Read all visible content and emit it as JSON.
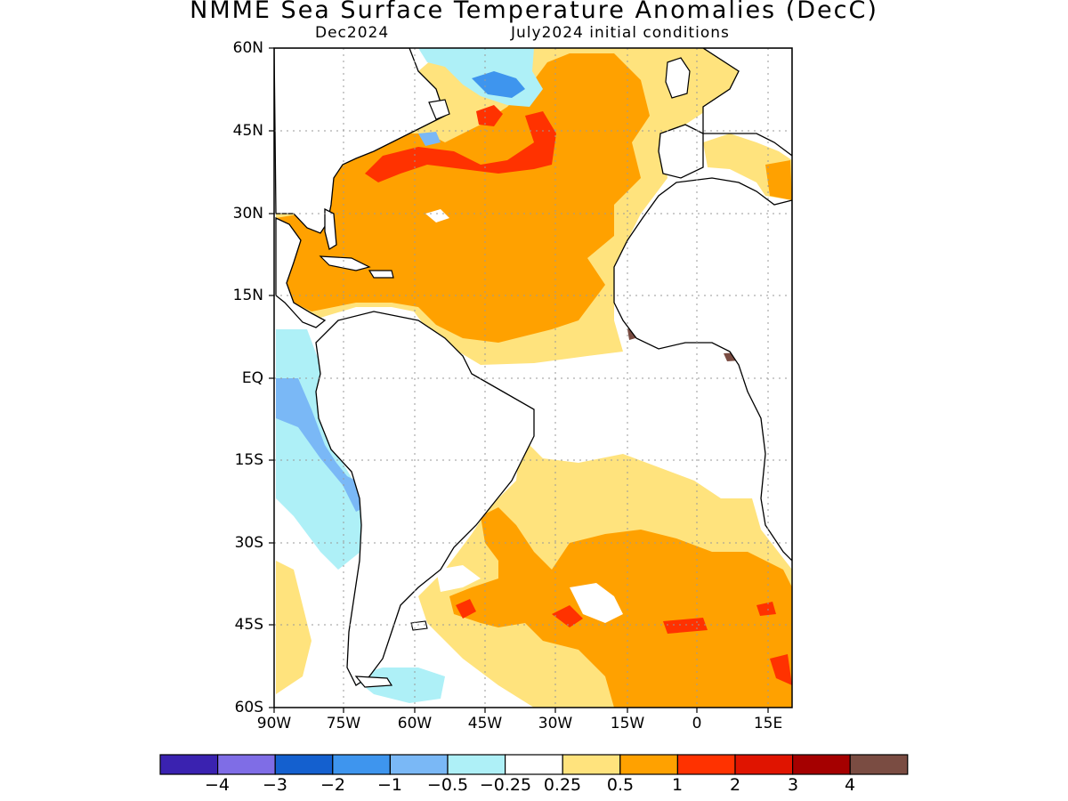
{
  "title": "NMME Sea Surface Temperature Anomalies (DecC)",
  "subtitle_left": "Dec2024",
  "subtitle_right": "July2024 initial conditions",
  "map": {
    "lon_range": [
      -90,
      20
    ],
    "lat_range": [
      -60,
      60
    ],
    "grid": "dotted",
    "lat_labels": [
      "60N",
      "45N",
      "30N",
      "15N",
      "EQ",
      "15S",
      "30S",
      "45S",
      "60S"
    ],
    "lon_labels": [
      "90W",
      "75W",
      "60W",
      "45W",
      "30W",
      "15W",
      "0",
      "15E"
    ]
  },
  "colorbar": {
    "colors": [
      "#3a22b0",
      "#7f6de6",
      "#1460cf",
      "#3e95ee",
      "#7ab8f6",
      "#aef0f7",
      "#ffffff",
      "#ffe37d",
      "#ffa100",
      "#ff3200",
      "#e01400",
      "#a50000",
      "#7a4c42"
    ],
    "labels": [
      "−4",
      "−3",
      "−2",
      "−1",
      "−0.5",
      "−0.25",
      "0.25",
      "0.5",
      "1",
      "2",
      "3",
      "4"
    ]
  },
  "colors": {
    "orange": "#ffa100",
    "yellow": "#ffe37d",
    "red": "#ff3200",
    "lightblue": "#aef0f7",
    "midblue": "#7ab8f6",
    "blue": "#3e95ee",
    "brown": "#7a4c42"
  }
}
